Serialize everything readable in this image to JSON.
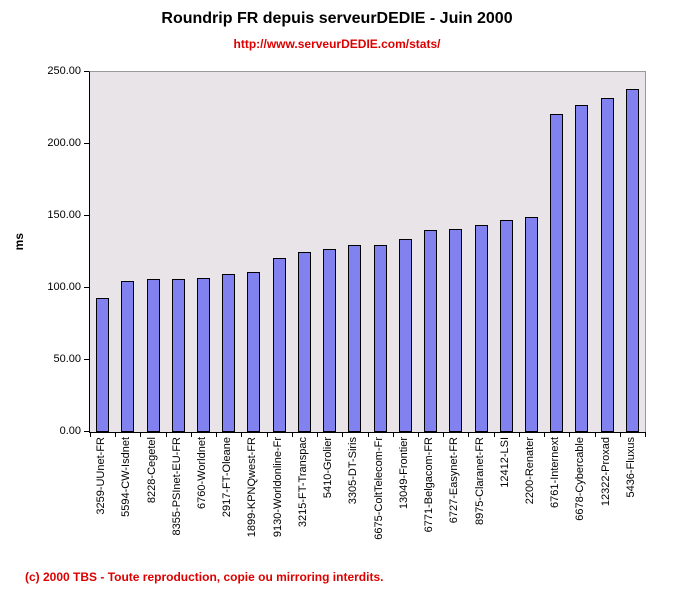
{
  "header": {
    "title": "Roundrip FR depuis serveurDEDIE - Juin 2000",
    "subtitle_url": "http://www.serveurDEDIE.com/stats/"
  },
  "footer": {
    "copyright": "(c) 2000 TBS - Toute reproduction, copie ou mirroring interdits."
  },
  "colors": {
    "bar_fill": "#8181F0",
    "bar_border": "#000000",
    "plot_background": "#E8E4E8",
    "accent_red": "#DD0000",
    "plot_outer_border": "#9A9A9A"
  },
  "chart_data": {
    "type": "bar",
    "title": "Roundrip FR depuis serveurDEDIE - Juin 2000",
    "subtitle": "http://www.serveurDEDIE.com/stats/",
    "xlabel": "",
    "ylabel": "ms",
    "ylim": [
      0,
      250
    ],
    "ytick_step": 50,
    "ytick_labels": [
      "0.00",
      "50.00",
      "100.00",
      "150.00",
      "200.00",
      "250.00"
    ],
    "grid": false,
    "legend_position": "none",
    "categories": [
      "3259-UUnet-FR",
      "5594-CW-Isdnet",
      "8228-Cegetel",
      "8355-PSInet-EU-FR",
      "6760-Worldnet",
      "2917-FT-Oleane",
      "1899-KPNQwest-FR",
      "9130-Worldonline-Fr",
      "3215-FT-Transpac",
      "5410-Grolier",
      "3305-DT-Siris",
      "6675-ColtTelecom-Fr",
      "13049-Frontier",
      "6771-Belgacom-FR",
      "6727-Easynet-FR",
      "8975-Claranet-FR",
      "12412-LSI",
      "2200-Renater",
      "6761-Internext",
      "6678-Cybercable",
      "12322-Proxad",
      "5436-Fluxus"
    ],
    "values": [
      93,
      105,
      106,
      106,
      107,
      110,
      111,
      121,
      125,
      127,
      130,
      130,
      134,
      140,
      141,
      144,
      147,
      149,
      221,
      227,
      232,
      238
    ]
  }
}
